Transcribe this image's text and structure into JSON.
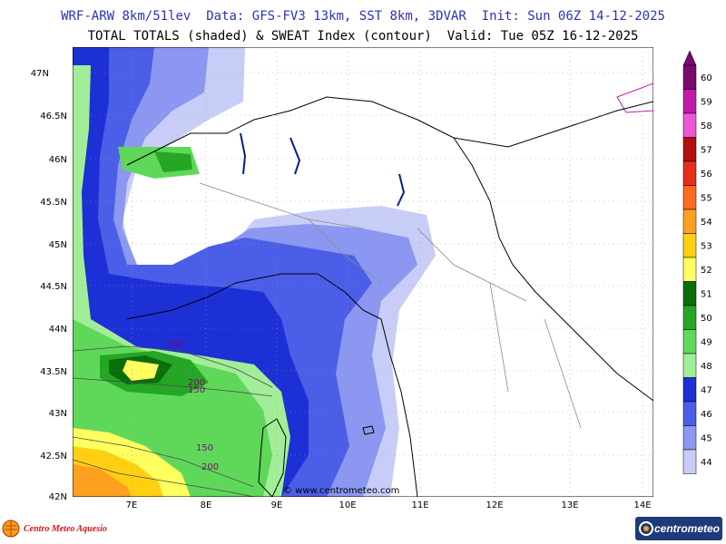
{
  "header": {
    "line1": "WRF-ARW 8km/51lev  Data: GFS-FV3 13km, SST 8km, 3DVAR  Init: Sun 06Z 14-12-2025",
    "line2": "TOTAL TOTALS (shaded) & SWEAT Index (contour)  Valid: Tue 05Z 16-12-2025"
  },
  "map": {
    "lat_labels": [
      "47N",
      "46.5N",
      "46N",
      "45.5N",
      "45N",
      "44.5N",
      "44N",
      "43.5N",
      "43N",
      "42.5N",
      "42N"
    ],
    "lon_labels": [
      "7E",
      "8E",
      "9E",
      "10E",
      "11E",
      "12E",
      "13E",
      "14E"
    ],
    "contour_labels": [
      "150",
      "200",
      "150",
      "150",
      "200"
    ],
    "watermark": "© www.centrometeo.com"
  },
  "colorbar": {
    "values": [
      "60",
      "59",
      "58",
      "57",
      "56",
      "55",
      "54",
      "53",
      "52",
      "51",
      "50",
      "49",
      "48",
      "47",
      "46",
      "45",
      "44"
    ],
    "colors": [
      "#7a0a6e",
      "#c21aa8",
      "#ee55d6",
      "#b30f0f",
      "#e82e1b",
      "#ff6a1f",
      "#ffa020",
      "#ffd012",
      "#ffff60",
      "#0a6e0a",
      "#25a625",
      "#5fd85a",
      "#a2ee98",
      "#1c30d6",
      "#4a5ee8",
      "#8b97f0",
      "#c8cdf8"
    ]
  },
  "footer": {
    "left_brand": "Centro Meteo Aquesio",
    "right_brand": "centrometeo"
  }
}
